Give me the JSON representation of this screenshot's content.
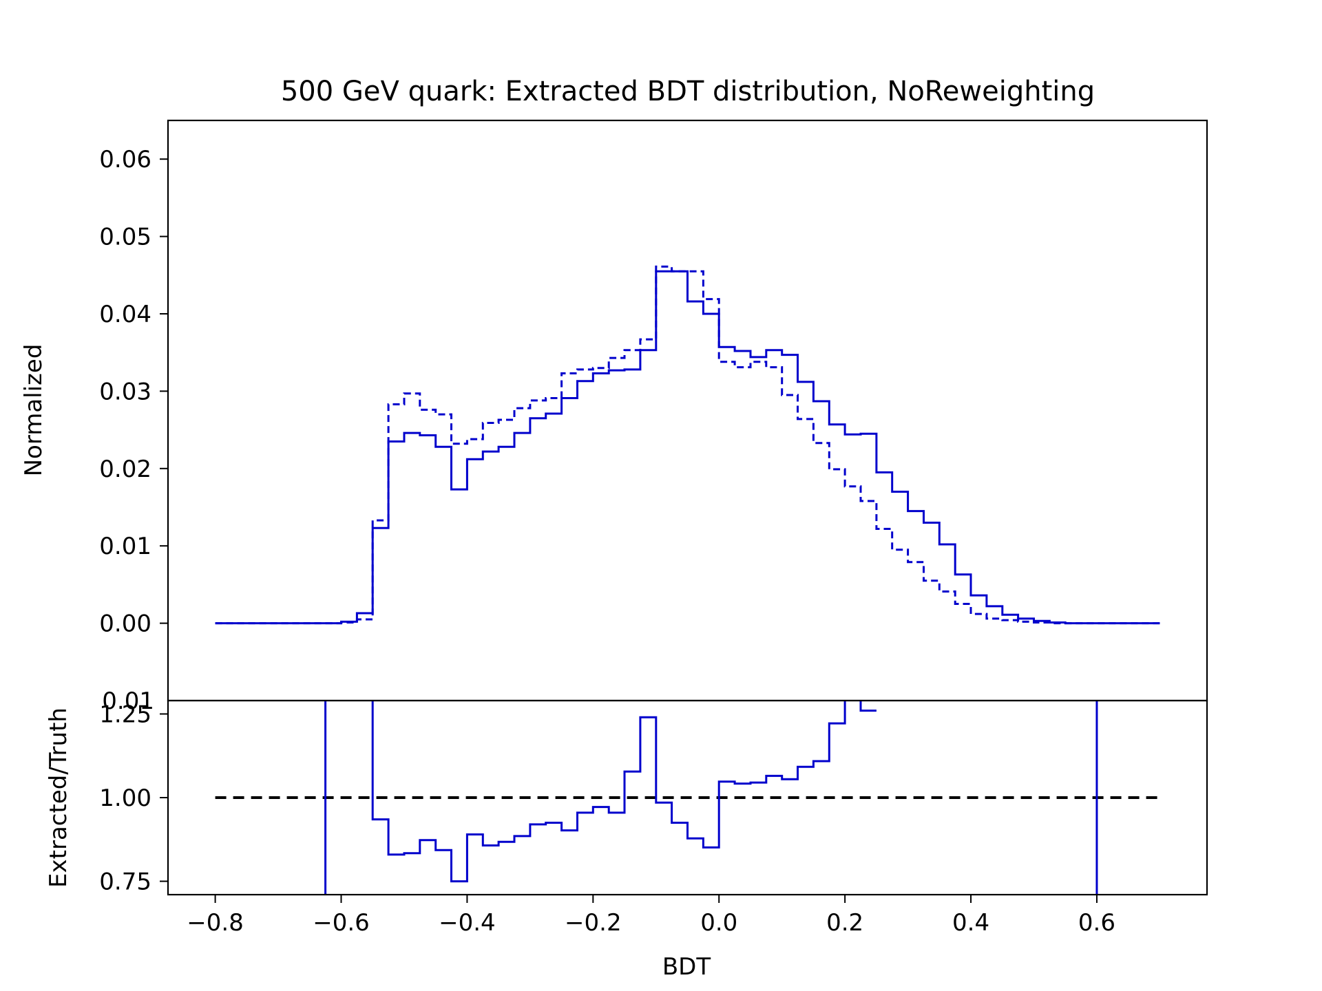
{
  "chart_data": [
    {
      "type": "line",
      "panel": "main",
      "title": "500 GeV quark: Extracted BDT distribution, NoReweighting",
      "ylabel": "Normalized",
      "xlabel": "",
      "xlim": [
        -0.875,
        0.775
      ],
      "ylim": [
        -0.01,
        0.065
      ],
      "yticks": [
        "0.00",
        "0.01",
        "0.02",
        "0.03",
        "0.04",
        "0.05",
        "0.06"
      ],
      "ytick_values": [
        0.0,
        0.01,
        0.02,
        0.03,
        0.04,
        0.05,
        0.06
      ],
      "bottom_tick_label": "0.01",
      "bin_edges": [
        -0.8,
        -0.775,
        -0.75,
        -0.725,
        -0.7,
        -0.675,
        -0.65,
        -0.625,
        -0.6,
        -0.575,
        -0.55,
        -0.525,
        -0.5,
        -0.475,
        -0.45,
        -0.425,
        -0.4,
        -0.375,
        -0.35,
        -0.325,
        -0.3,
        -0.275,
        -0.25,
        -0.225,
        -0.2,
        -0.175,
        -0.15,
        -0.125,
        -0.1,
        -0.075,
        -0.05,
        -0.025,
        0.0,
        0.025,
        0.05,
        0.075,
        0.1,
        0.125,
        0.15,
        0.175,
        0.2,
        0.225,
        0.25,
        0.275,
        0.3,
        0.325,
        0.35,
        0.375,
        0.4,
        0.425,
        0.45,
        0.475,
        0.5,
        0.525,
        0.55,
        0.575,
        0.6,
        0.625,
        0.65,
        0.675,
        0.7
      ],
      "series": [
        {
          "style": "solid",
          "color": "#0000cc",
          "values": [
            0,
            0,
            0,
            0,
            0,
            0,
            0,
            0,
            0.0002,
            0.0013,
            0.0123,
            0.0235,
            0.0246,
            0.0243,
            0.0228,
            0.0173,
            0.0212,
            0.0222,
            0.0228,
            0.0246,
            0.0265,
            0.0271,
            0.0291,
            0.0313,
            0.0323,
            0.0327,
            0.0328,
            0.0353,
            0.0455,
            0.0455,
            0.0416,
            0.04,
            0.0357,
            0.0352,
            0.0344,
            0.0353,
            0.0347,
            0.0312,
            0.0287,
            0.0257,
            0.0244,
            0.0245,
            0.0195,
            0.017,
            0.0145,
            0.013,
            0.0102,
            0.0063,
            0.0036,
            0.0022,
            0.0011,
            0.0006,
            0.0003,
            0.0001,
            0,
            0,
            0,
            0,
            0,
            0
          ]
        },
        {
          "style": "dashed",
          "color": "#0000cc",
          "values": [
            0,
            0,
            0,
            0,
            0,
            0,
            0,
            0,
            0.0001,
            0.0005,
            0.0133,
            0.0283,
            0.0297,
            0.0276,
            0.027,
            0.0232,
            0.0238,
            0.0259,
            0.0263,
            0.0278,
            0.0288,
            0.0291,
            0.0323,
            0.0328,
            0.033,
            0.0343,
            0.0353,
            0.0367,
            0.0461,
            0.0455,
            0.0455,
            0.0419,
            0.0338,
            0.0331,
            0.0338,
            0.0331,
            0.0295,
            0.0264,
            0.0233,
            0.0199,
            0.0177,
            0.0158,
            0.0122,
            0.0095,
            0.0079,
            0.0055,
            0.0041,
            0.0025,
            0.0012,
            0.0006,
            0.0004,
            0.0002,
            0.0001,
            0,
            0,
            0,
            0,
            0,
            0,
            0
          ]
        }
      ]
    },
    {
      "type": "line",
      "panel": "ratio",
      "title": "",
      "xlabel": "BDT",
      "ylabel": "Extracted/Truth",
      "xlim": [
        -0.875,
        0.775
      ],
      "ylim": [
        0.71,
        1.29
      ],
      "xticks": [
        "−0.8",
        "−0.6",
        "−0.4",
        "−0.2",
        "0.0",
        "0.2",
        "0.4",
        "0.6"
      ],
      "xtick_values": [
        -0.8,
        -0.6,
        -0.4,
        -0.2,
        0.0,
        0.2,
        0.4,
        0.6
      ],
      "yticks": [
        "0.75",
        "1.00",
        "1.25"
      ],
      "ytick_values": [
        0.75,
        1.0,
        1.25
      ],
      "reference_line": {
        "y": 1.0,
        "style": "dashed",
        "color": "#000000"
      },
      "ratio_edges": [
        -0.625,
        -0.55,
        -0.525,
        -0.5,
        -0.475,
        -0.45,
        -0.425,
        -0.4,
        -0.375,
        -0.35,
        -0.325,
        -0.3,
        -0.275,
        -0.25,
        -0.225,
        -0.2,
        -0.175,
        -0.15,
        -0.125,
        -0.1,
        -0.075,
        -0.05,
        -0.025,
        0.0,
        0.025,
        0.05,
        0.075,
        0.1,
        0.125,
        0.15,
        0.175,
        0.2,
        0.225,
        0.25
      ],
      "ratio_values": [
        3.0,
        0.935,
        0.83,
        0.834,
        0.873,
        0.843,
        0.75,
        0.89,
        0.857,
        0.868,
        0.885,
        0.92,
        0.925,
        0.902,
        0.955,
        0.972,
        0.955,
        1.078,
        1.24,
        0.985,
        0.925,
        0.878,
        0.851,
        1.048,
        1.042,
        1.045,
        1.065,
        1.055,
        1.092,
        1.109,
        1.222,
        1.4,
        1.26
      ],
      "spike": {
        "x": 0.6,
        "value": 3.0
      },
      "color": "#0000cc"
    }
  ]
}
